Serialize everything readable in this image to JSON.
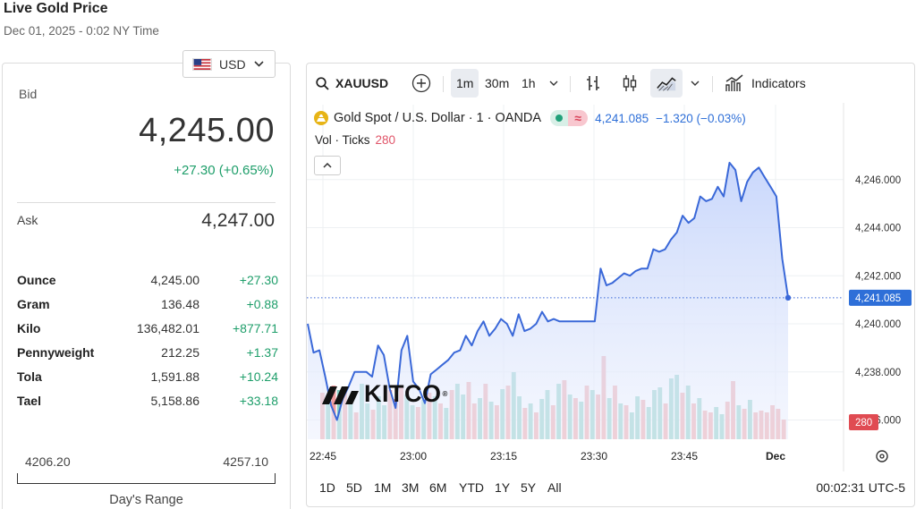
{
  "header": {
    "title": "Live Gold Price",
    "datetime": "Dec 01, 2025 - 0:02 NY Time"
  },
  "currency": {
    "selected": "USD"
  },
  "quote": {
    "bid_label": "Bid",
    "bid": "4,245.00",
    "change": "+27.30 (+0.65%)",
    "ask_label": "Ask",
    "ask": "4,247.00"
  },
  "units": [
    {
      "name": "Ounce",
      "price": "4,245.00",
      "change": "+27.30"
    },
    {
      "name": "Gram",
      "price": "136.48",
      "change": "+0.88"
    },
    {
      "name": "Kilo",
      "price": "136,482.01",
      "change": "+877.71"
    },
    {
      "name": "Pennyweight",
      "price": "212.25",
      "change": "+1.37"
    },
    {
      "name": "Tola",
      "price": "1,591.88",
      "change": "+10.24"
    },
    {
      "name": "Tael",
      "price": "5,158.86",
      "change": "+33.18"
    }
  ],
  "day_range": {
    "low": "4206.20",
    "high": "4257.10",
    "label": "Day's Range"
  },
  "toolbar": {
    "symbol": "XAUUSD",
    "intervals": [
      "1m",
      "30m",
      "1h"
    ],
    "active_interval": "1m",
    "indicators_label": "Indicators"
  },
  "legend": {
    "title": "Gold Spot / U.S. Dollar · 1 · OANDA",
    "last": "4,241.085",
    "change": "−1.320 (−0.03%)",
    "vol_label": "Vol · Ticks",
    "vol_value": "280"
  },
  "ranges": [
    "1D",
    "5D",
    "1M",
    "3M",
    "6M",
    "YTD",
    "1Y",
    "5Y",
    "All"
  ],
  "clock": "00:02:31 UTC-5",
  "watermark": "KITCO",
  "colors": {
    "line": "#3a68d8",
    "up": "#82cbc0",
    "down": "#ef9c9f",
    "green": "#1e9e6a",
    "accent": "#2e6fd8"
  },
  "chart_data": {
    "type": "area",
    "title": "Gold Spot / U.S. Dollar · 1 · OANDA",
    "x_ticks": [
      "22:45",
      "23:00",
      "23:15",
      "23:30",
      "23:45",
      "Dec"
    ],
    "y_ticks": [
      "4,236.000",
      "4,238.000",
      "4,240.000",
      "4,242.000",
      "4,244.000",
      "4,246.000"
    ],
    "ylim": [
      4235.2,
      4248.0
    ],
    "last_price_label": "4,241.085",
    "volume_label": "280",
    "grid": true,
    "series": [
      {
        "values": [
          4240.0,
          4238.8,
          4238.9,
          4237.8,
          4236.6,
          4236.0,
          4236.9,
          4237.4,
          4238.0,
          4238.0,
          4238.0,
          4237.8,
          4239.1,
          4238.7,
          4237.3,
          4236.5,
          4238.9,
          4239.5,
          4237.6,
          4237.3,
          4236.7,
          4237.9,
          4238.1,
          4238.3,
          4238.5,
          4238.8,
          4238.9,
          4239.5,
          4239.1,
          4239.7,
          4240.1,
          4239.5,
          4239.8,
          4240.2,
          4240.0,
          4239.5,
          4240.4,
          4239.7,
          4239.8,
          4240.0,
          4240.5,
          4240.1,
          4240.2,
          4240.1,
          4240.1,
          4240.1,
          4240.1,
          4240.1,
          4240.1,
          4240.1,
          4242.3,
          4241.6,
          4241.7,
          4241.9,
          4242.1,
          4242.0,
          4242.2,
          4242.3,
          4242.3,
          4243.1,
          4243.0,
          4243.1,
          4243.5,
          4243.8,
          4244.5,
          4244.2,
          4244.4,
          4245.3,
          4245.1,
          4245.2,
          4245.7,
          4245.3,
          4246.7,
          4246.4,
          4245.1,
          4245.9,
          4246.3,
          4246.5,
          4246.1,
          4245.7,
          4245.3,
          4242.7,
          4241.085
        ]
      }
    ],
    "volume": [
      {
        "v": 52,
        "up": false
      },
      {
        "v": 48,
        "up": true
      },
      {
        "v": 60,
        "up": false
      },
      {
        "v": 55,
        "up": true
      },
      {
        "v": 58,
        "up": false
      },
      {
        "v": 42,
        "up": true
      },
      {
        "v": 30,
        "up": false
      },
      {
        "v": 62,
        "up": true
      },
      {
        "v": 40,
        "up": true
      },
      {
        "v": 33,
        "up": false
      },
      {
        "v": 48,
        "up": true
      },
      {
        "v": 38,
        "up": true
      },
      {
        "v": 55,
        "up": false
      },
      {
        "v": 45,
        "up": false
      },
      {
        "v": 60,
        "up": false
      },
      {
        "v": 50,
        "up": true
      },
      {
        "v": 38,
        "up": true
      },
      {
        "v": 36,
        "up": false
      },
      {
        "v": 44,
        "up": true
      },
      {
        "v": 52,
        "up": false
      },
      {
        "v": 48,
        "up": true
      },
      {
        "v": 40,
        "up": false
      },
      {
        "v": 35,
        "up": true
      },
      {
        "v": 55,
        "up": false
      },
      {
        "v": 62,
        "up": true
      },
      {
        "v": 50,
        "up": true
      },
      {
        "v": 64,
        "up": false
      },
      {
        "v": 40,
        "up": false
      },
      {
        "v": 46,
        "up": true
      },
      {
        "v": 62,
        "up": false
      },
      {
        "v": 42,
        "up": true
      },
      {
        "v": 38,
        "up": false
      },
      {
        "v": 56,
        "up": true
      },
      {
        "v": 60,
        "up": false
      },
      {
        "v": 75,
        "up": true
      },
      {
        "v": 48,
        "up": true
      },
      {
        "v": 35,
        "up": false
      },
      {
        "v": 40,
        "up": true
      },
      {
        "v": 30,
        "up": false
      },
      {
        "v": 45,
        "up": true
      },
      {
        "v": 55,
        "up": true
      },
      {
        "v": 38,
        "up": false
      },
      {
        "v": 62,
        "up": true
      },
      {
        "v": 66,
        "up": false
      },
      {
        "v": 50,
        "up": true
      },
      {
        "v": 46,
        "up": false
      },
      {
        "v": 42,
        "up": true
      },
      {
        "v": 60,
        "up": false
      },
      {
        "v": 55,
        "up": true
      },
      {
        "v": 50,
        "up": false
      },
      {
        "v": 93,
        "up": false
      },
      {
        "v": 46,
        "up": true
      },
      {
        "v": 60,
        "up": false
      },
      {
        "v": 40,
        "up": true
      },
      {
        "v": 38,
        "up": false
      },
      {
        "v": 30,
        "up": true
      },
      {
        "v": 48,
        "up": true
      },
      {
        "v": 44,
        "up": false
      },
      {
        "v": 36,
        "up": true
      },
      {
        "v": 55,
        "up": true
      },
      {
        "v": 58,
        "up": true
      },
      {
        "v": 40,
        "up": false
      },
      {
        "v": 68,
        "up": true
      },
      {
        "v": 72,
        "up": true
      },
      {
        "v": 52,
        "up": false
      },
      {
        "v": 60,
        "up": true
      },
      {
        "v": 40,
        "up": false
      },
      {
        "v": 46,
        "up": true
      },
      {
        "v": 32,
        "up": false
      },
      {
        "v": 30,
        "up": false
      },
      {
        "v": 36,
        "up": true
      },
      {
        "v": 28,
        "up": true
      },
      {
        "v": 42,
        "up": false
      },
      {
        "v": 65,
        "up": false
      },
      {
        "v": 38,
        "up": true
      },
      {
        "v": 34,
        "up": false
      },
      {
        "v": 44,
        "up": true
      },
      {
        "v": 30,
        "up": false
      },
      {
        "v": 32,
        "up": false
      },
      {
        "v": 30,
        "up": false
      },
      {
        "v": 38,
        "up": false
      },
      {
        "v": 34,
        "up": false
      },
      {
        "v": 22,
        "up": false
      }
    ]
  }
}
